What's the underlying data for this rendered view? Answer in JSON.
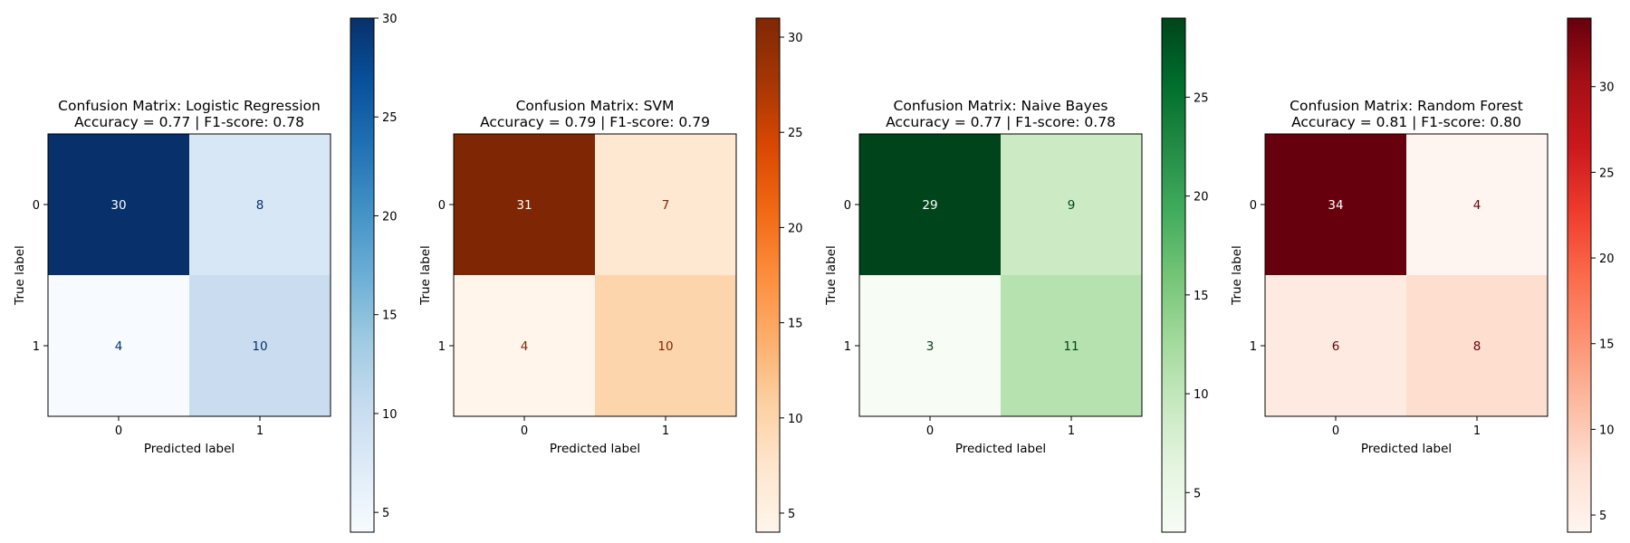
{
  "chart_data": [
    {
      "type": "heatmap",
      "title": "Confusion Matrix: Logistic Regression",
      "subtitle": "Accuracy = 0.77 | F1-score: 0.78",
      "xlabel": "Predicted label",
      "ylabel": "True label",
      "x_categories": [
        "0",
        "1"
      ],
      "y_categories": [
        "0",
        "1"
      ],
      "matrix": [
        [
          30,
          8
        ],
        [
          4,
          10
        ]
      ],
      "colormap": "Blues",
      "colorbar": {
        "min": 4,
        "max": 30,
        "ticks": [
          "5",
          "10",
          "15",
          "20",
          "25",
          "30"
        ]
      }
    },
    {
      "type": "heatmap",
      "title": "Confusion Matrix: SVM",
      "subtitle": "Accuracy = 0.79 | F1-score: 0.79",
      "xlabel": "Predicted label",
      "ylabel": "True label",
      "x_categories": [
        "0",
        "1"
      ],
      "y_categories": [
        "0",
        "1"
      ],
      "matrix": [
        [
          31,
          7
        ],
        [
          4,
          10
        ]
      ],
      "colormap": "Oranges",
      "colorbar": {
        "min": 4,
        "max": 31,
        "ticks": [
          "5",
          "10",
          "15",
          "20",
          "25",
          "30"
        ]
      }
    },
    {
      "type": "heatmap",
      "title": "Confusion Matrix: Naive Bayes",
      "subtitle": "Accuracy = 0.77 | F1-score: 0.78",
      "xlabel": "Predicted label",
      "ylabel": "True label",
      "x_categories": [
        "0",
        "1"
      ],
      "y_categories": [
        "0",
        "1"
      ],
      "matrix": [
        [
          29,
          9
        ],
        [
          3,
          11
        ]
      ],
      "colormap": "Greens",
      "colorbar": {
        "min": 3,
        "max": 29,
        "ticks": [
          "5",
          "10",
          "15",
          "20",
          "25"
        ]
      }
    },
    {
      "type": "heatmap",
      "title": "Confusion Matrix: Random Forest",
      "subtitle": "Accuracy = 0.81 | F1-score: 0.80",
      "xlabel": "Predicted label",
      "ylabel": "True label",
      "x_categories": [
        "0",
        "1"
      ],
      "y_categories": [
        "0",
        "1"
      ],
      "matrix": [
        [
          34,
          4
        ],
        [
          6,
          8
        ]
      ],
      "colormap": "Reds",
      "colorbar": {
        "min": 4,
        "max": 34,
        "ticks": [
          "5",
          "10",
          "15",
          "20",
          "25",
          "30"
        ]
      }
    }
  ]
}
